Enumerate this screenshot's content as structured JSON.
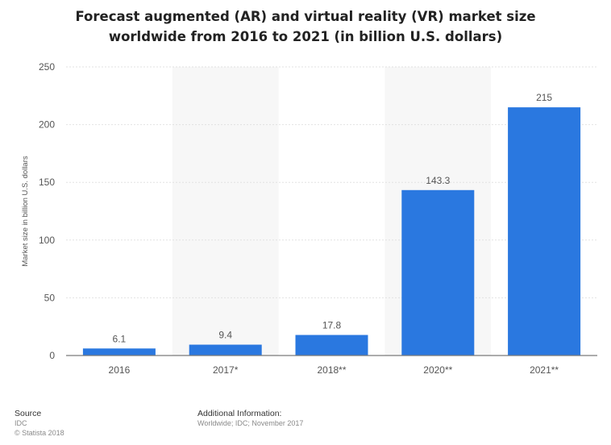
{
  "title_lines": [
    "Forecast augmented (AR) and virtual reality (VR) market size",
    "worldwide from 2016 to 2021 (in billion U.S. dollars)"
  ],
  "footer": {
    "source_heading": "Source",
    "source_lines": [
      "IDC",
      "© Statista 2018"
    ],
    "info_heading": "Additional Information:",
    "info_lines": [
      "Worldwide; IDC; November 2017"
    ]
  },
  "colors": {
    "bar": "#2a78e0",
    "band": "#f7f7f7",
    "grid": "#e2e2e2",
    "axis": "#7a7a7a"
  },
  "chart_data": {
    "type": "bar",
    "title": "Forecast augmented (AR) and virtual reality (VR) market size worldwide from 2016 to 2021 (in billion U.S. dollars)",
    "categories": [
      "2016",
      "2017*",
      "2018**",
      "2020**",
      "2021**"
    ],
    "values": [
      6.1,
      9.4,
      17.8,
      143.3,
      215
    ],
    "data_labels": [
      "6.1",
      "9.4",
      "17.8",
      "143.3",
      "215"
    ],
    "xlabel": "",
    "ylabel": "Market size in billion U.S. dollars",
    "ylim": [
      0,
      250
    ],
    "yticks": [
      0,
      50,
      100,
      150,
      200,
      250
    ],
    "grid": true,
    "legend": "none"
  }
}
